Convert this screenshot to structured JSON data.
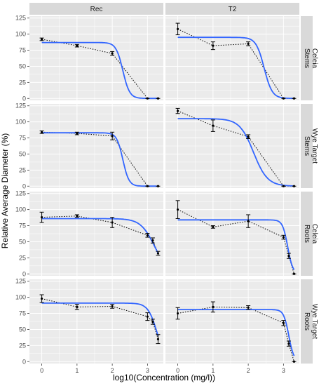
{
  "chart_data": {
    "type": "line",
    "xlabel": "log10(Concentration (mg/l))",
    "ylabel": "Relative Average Diameter (%)",
    "col_strips": [
      "Rec",
      "T2"
    ],
    "row_strips": [
      [
        "Stems",
        "Celeia"
      ],
      [
        "Stems",
        "Wye Target"
      ],
      [
        "Roots",
        "Celeia"
      ],
      [
        "Roots",
        "Wye Target"
      ]
    ],
    "xlim": [
      -0.35,
      3.45
    ],
    "ylim": [
      -3,
      128
    ],
    "x_ticks": [
      0,
      1,
      2,
      3
    ],
    "y_ticks": [
      0,
      25,
      50,
      75,
      100,
      125
    ],
    "x_values": [
      0,
      1,
      2,
      3,
      3.3
    ],
    "panels": [
      {
        "row": 0,
        "col": 0,
        "means": [
          92,
          82,
          70,
          0,
          0
        ],
        "errors": [
          2,
          2,
          3,
          0,
          0
        ],
        "fit": {
          "top": 87,
          "ec50_log": 2.3,
          "slope": 4.5
        }
      },
      {
        "row": 0,
        "col": 1,
        "means": [
          108,
          82,
          85,
          0,
          0
        ],
        "errors": [
          9,
          6,
          3,
          0,
          0
        ],
        "fit": {
          "top": 95,
          "ec50_log": 2.45,
          "slope": 3.8
        }
      },
      {
        "row": 1,
        "col": 0,
        "means": [
          84,
          82,
          78,
          0,
          0
        ],
        "errors": [
          2,
          2,
          6,
          0,
          0
        ],
        "fit": {
          "top": 83,
          "ec50_log": 2.3,
          "slope": 5
        }
      },
      {
        "row": 1,
        "col": 1,
        "means": [
          117,
          94,
          77,
          0,
          0
        ],
        "errors": [
          4,
          9,
          3,
          0,
          0
        ],
        "fit": {
          "top": 105,
          "ec50_log": 2.15,
          "slope": 2.2
        }
      },
      {
        "row": 2,
        "col": 0,
        "means": [
          88,
          90,
          80,
          60,
          52,
          32
        ],
        "x": [
          0,
          1,
          2,
          3,
          3.15,
          3.3
        ],
        "errors": [
          8,
          2,
          8,
          3,
          4,
          3
        ],
        "fit": {
          "top": 86,
          "ec50_log": 3.2,
          "slope": 2.2
        }
      },
      {
        "row": 2,
        "col": 1,
        "means": [
          100,
          73,
          82,
          57,
          28,
          0
        ],
        "x": [
          0,
          1,
          2,
          3,
          3.15,
          3.3
        ],
        "errors": [
          14,
          2,
          10,
          3,
          4,
          0
        ],
        "fit": {
          "top": 84,
          "ec50_log": 3.12,
          "slope": 6
        }
      },
      {
        "row": 3,
        "col": 0,
        "means": [
          98,
          85,
          86,
          70,
          62,
          35
        ],
        "x": [
          0,
          1,
          2,
          3,
          3.15,
          3.3
        ],
        "errors": [
          6,
          4,
          3,
          6,
          4,
          7
        ],
        "fit": {
          "top": 91,
          "ec50_log": 3.27,
          "slope": 3.4
        }
      },
      {
        "row": 3,
        "col": 1,
        "means": [
          75,
          85,
          84,
          60,
          28,
          0
        ],
        "x": [
          0,
          1,
          2,
          3,
          3.15,
          3.3
        ],
        "errors": [
          9,
          8,
          3,
          4,
          4,
          0
        ],
        "fit": {
          "top": 81,
          "ec50_log": 3.15,
          "slope": 6
        }
      }
    ],
    "fit_color": "#3366ff",
    "panel_background": "#ebebeb",
    "strip_background": "#d9d9d9",
    "grid_color": "#ffffff"
  }
}
